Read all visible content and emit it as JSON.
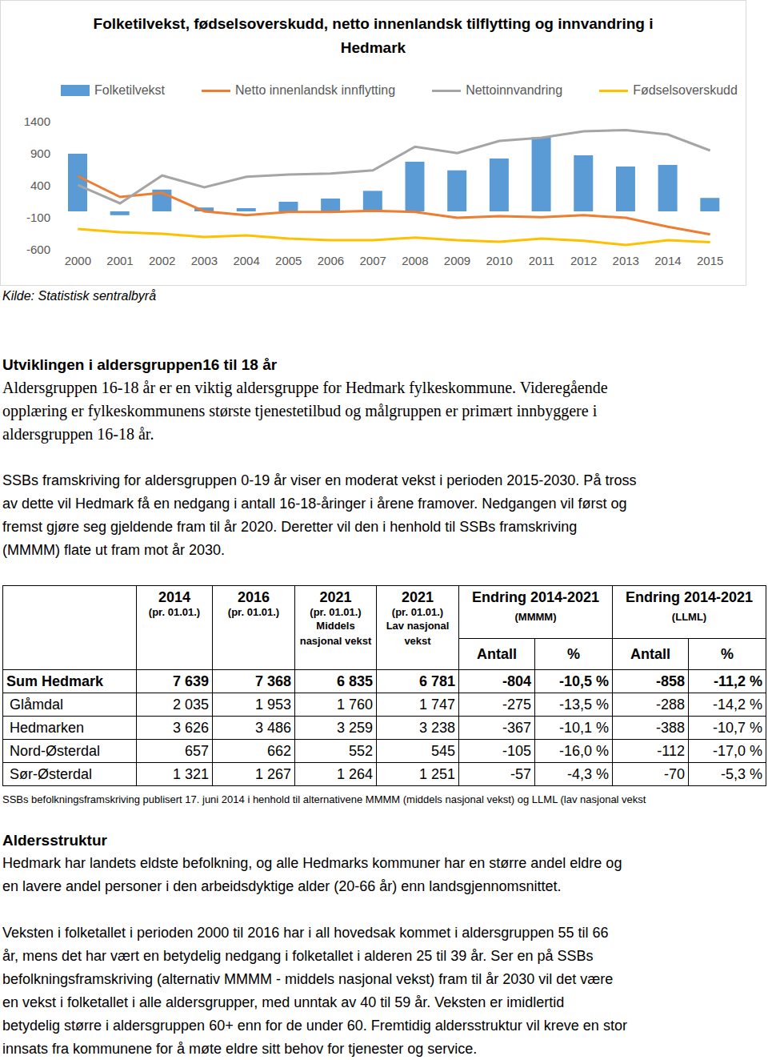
{
  "chart_data": {
    "type": "bar",
    "title": "Folketilvekst, fødselsoverskudd, netto innenlandsk tilflytting og innvandring i Hedmark",
    "categories": [
      "2000",
      "2001",
      "2002",
      "2003",
      "2004",
      "2005",
      "2006",
      "2007",
      "2008",
      "2009",
      "2010",
      "2011",
      "2012",
      "2013",
      "2014",
      "2015"
    ],
    "series": [
      {
        "name": "Folketilvekst",
        "type": "bar",
        "color": "#5b9bd5",
        "values": [
          900,
          -60,
          340,
          60,
          50,
          150,
          200,
          320,
          775,
          640,
          825,
          1160,
          875,
          700,
          725,
          210
        ]
      },
      {
        "name": "Netto innenlandsk innflytting",
        "type": "line",
        "color": "#ed7d31",
        "values": [
          550,
          225,
          290,
          0,
          -60,
          -10,
          -10,
          10,
          -10,
          -100,
          -75,
          -90,
          -60,
          -100,
          -240,
          -360
        ]
      },
      {
        "name": "Nettoinnvandring",
        "type": "line",
        "color": "#a5a5a5",
        "values": [
          410,
          125,
          560,
          375,
          540,
          575,
          590,
          640,
          1010,
          910,
          1100,
          1150,
          1250,
          1270,
          1200,
          950
        ]
      },
      {
        "name": "Fødselsoverskudd",
        "type": "line",
        "color": "#ffc000",
        "values": [
          -275,
          -325,
          -350,
          -400,
          -375,
          -425,
          -450,
          -450,
          -410,
          -450,
          -475,
          -425,
          -460,
          -525,
          -450,
          -480
        ]
      }
    ],
    "ylim": [
      -600,
      1400
    ],
    "yticks": [
      -600,
      -100,
      400,
      900,
      1400
    ],
    "grid": false,
    "legend": "top"
  },
  "document": {
    "source": "Kilde: Statistisk sentralbyrå",
    "section1": {
      "heading": "Utviklingen i aldersgruppen16 til 18 år",
      "paragraphs": [
        [
          "Aldersgruppen 16-18 år er en viktig aldersgruppe for Hedmark fylkeskommune. Videregående",
          "opplæring er fylkeskommunens største tjenestetilbud og målgruppen er primært innbyggere i",
          "aldersgruppen 16-18 år."
        ],
        [
          "SSBs framskriving for aldersgruppen 0-19 år viser en moderat vekst i perioden 2015-2030. På tross",
          "av dette vil Hedmark få en nedgang i antall 16-18-åringer i årene framover. Nedgangen vil først og",
          "fremst gjøre seg gjeldende fram til år 2020. Deretter vil den i henhold til SSBs framskriving",
          "(MMMM) flate ut fram mot år 2030."
        ]
      ]
    },
    "table": {
      "columns": [
        {
          "year": "2014",
          "sub": "(pr. 01.01.)"
        },
        {
          "year": "2016",
          "sub": "(pr. 01.01.)"
        },
        {
          "year": "2021",
          "sub": "(pr. 01.01.)",
          "note": "Middels nasjonal vekst"
        },
        {
          "year": "2021",
          "sub": "(pr. 01.01.)",
          "note": "Lav nasjonal vekst"
        }
      ],
      "groups": [
        {
          "title": "Endring 2014-2021",
          "sub": "(MMMM)",
          "cols": [
            "Antall",
            "%"
          ]
        },
        {
          "title": "Endring 2014-2021",
          "sub": "(LLML)",
          "cols": [
            "Antall",
            "%"
          ]
        }
      ],
      "rows": [
        [
          "Sum Hedmark",
          "7 639",
          "7 368",
          "6 835",
          "6 781",
          "-804",
          "-10,5 %",
          "-858",
          "-11,2 %"
        ],
        [
          "Glåmdal",
          "2 035",
          "1 953",
          "1 760",
          "1 747",
          "-275",
          "-13,5 %",
          "-288",
          "-14,2 %"
        ],
        [
          "Hedmarken",
          "3 626",
          "3 486",
          "3 259",
          "3 238",
          "-367",
          "-10,1 %",
          "-388",
          "-10,7 %"
        ],
        [
          "Nord-Østerdal",
          "657",
          "662",
          "552",
          "545",
          "-105",
          "-16,0 %",
          "-112",
          "-17,0 %"
        ],
        [
          "Sør-Østerdal",
          "1 321",
          "1 267",
          "1 264",
          "1 251",
          "-57",
          "-4,3 %",
          "-70",
          "-5,3 %"
        ]
      ],
      "note": "SSBs befolkningsframskriving publisert 17. juni 2014 i henhold til alternativene MMMM (middels nasjonal vekst) og LLML (lav nasjonal vekst"
    },
    "section2": {
      "heading": "Aldersstruktur",
      "paragraphs": [
        [
          "Hedmark har landets eldste befolkning, og alle Hedmarks kommuner har en større andel eldre og",
          "en lavere andel personer i den arbeidsdyktige alder (20-66 år) enn landsgjennomsnittet."
        ],
        [
          "Veksten i folketallet i perioden 2000 til 2016 har i all hovedsak kommet i aldersgruppen 55 til 66",
          "år, mens det har vært en betydelig nedgang i folketallet i alderen 25 til 39 år. Ser en på SSBs",
          "befolkningsframskriving (alternativ MMMM - middels nasjonal vekst) fram til år 2030 vil det være",
          "en vekst i folketallet i alle aldersgrupper, med unntak av 40 til 59 år. Veksten er imidlertid",
          "betydelig større i aldersgruppen 60+ enn for de under 60. Fremtidig aldersstruktur vil kreve en stor",
          "innsats fra kommunene for å møte eldre sitt behov for tjenester og service."
        ]
      ]
    }
  }
}
